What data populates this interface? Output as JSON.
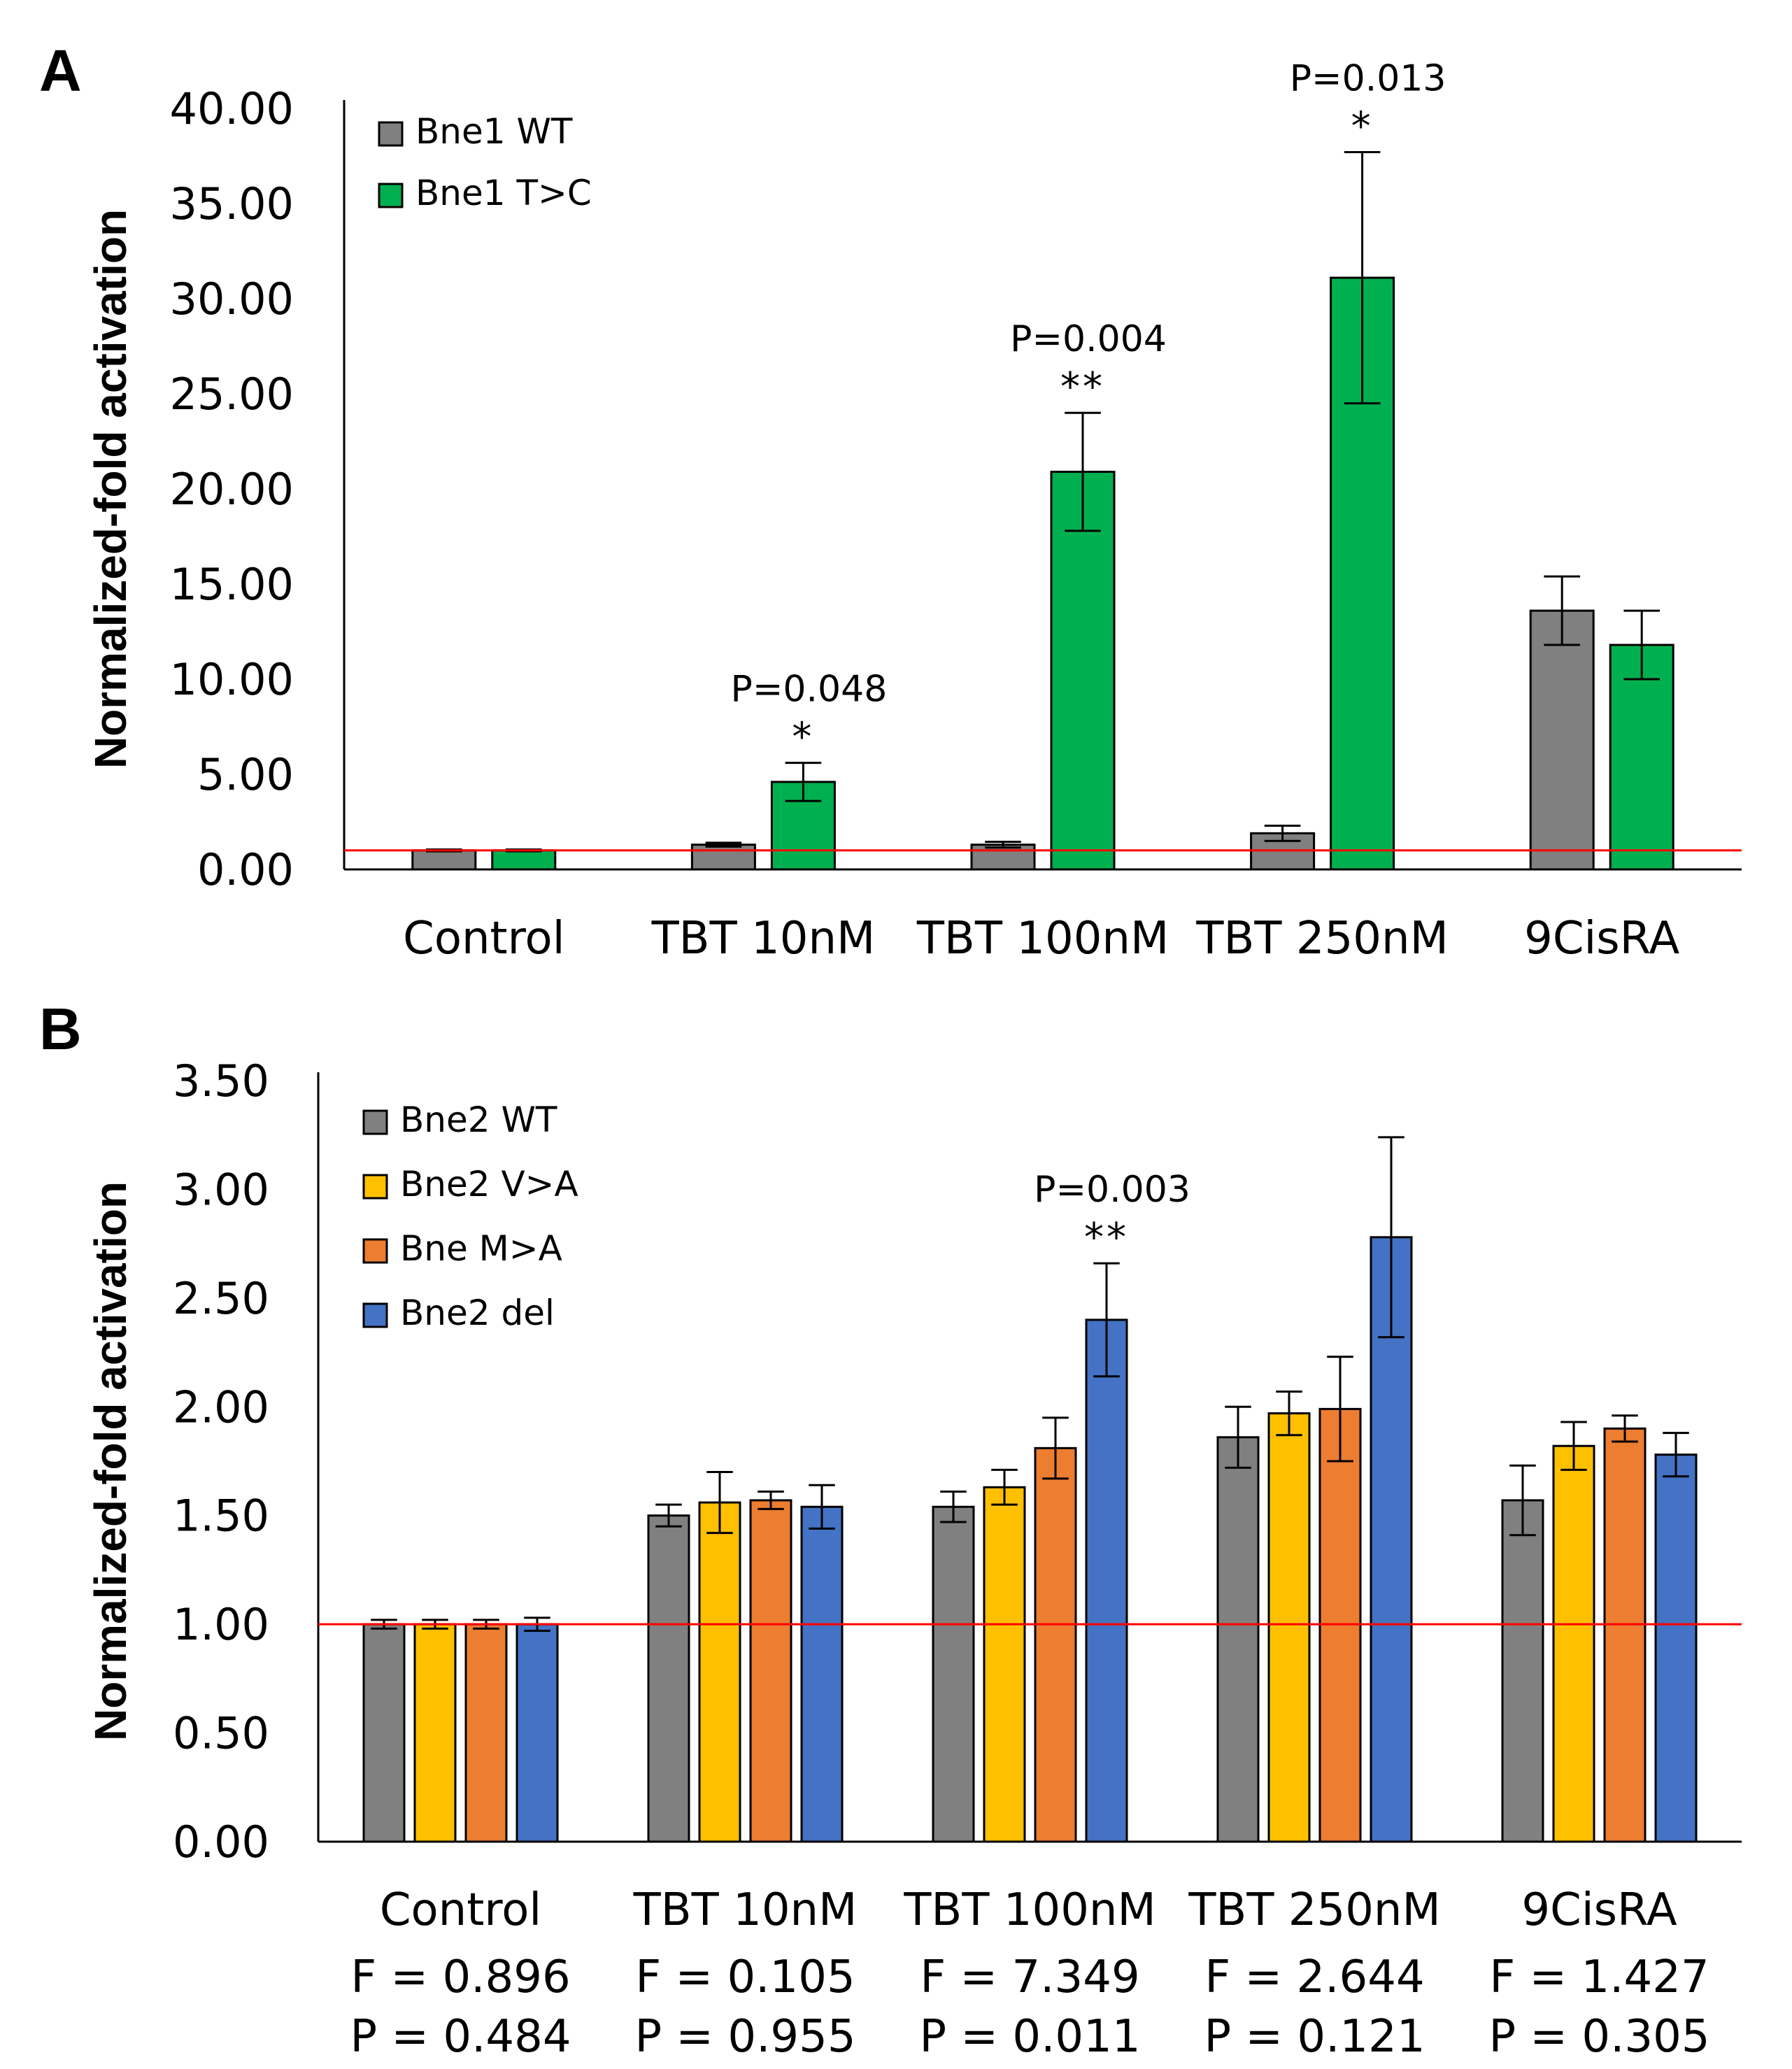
{
  "chart_data": [
    {
      "panel_label": "A",
      "type": "bar",
      "ylabel": "Normalized-fold activation",
      "ylim": [
        0,
        40
      ],
      "yticks": [
        "0.00",
        "5.00",
        "10.00",
        "15.00",
        "20.00",
        "25.00",
        "30.00",
        "35.00",
        "40.00"
      ],
      "categories": [
        "Control",
        "TBT 10nM",
        "TBT 100nM",
        "TBT 250nM",
        "9CisRA"
      ],
      "reference_line": 1.0,
      "reference_color": "#ff0000",
      "legend_position": "top-left",
      "series": [
        {
          "name": "Bne1 WT",
          "color": "#808080",
          "values": [
            1.0,
            1.3,
            1.3,
            1.9,
            13.6
          ],
          "errors": [
            0.05,
            0.1,
            0.15,
            0.4,
            1.8
          ]
        },
        {
          "name": "Bne1 T>C",
          "color": "#00b050",
          "values": [
            1.0,
            4.6,
            20.9,
            31.1,
            11.8
          ],
          "errors": [
            0.05,
            1.0,
            3.1,
            6.6,
            1.8
          ]
        }
      ],
      "annotations": [
        {
          "category": "TBT 10nM",
          "series": 1,
          "p": "P=0.048",
          "stars": "*"
        },
        {
          "category": "TBT 100nM",
          "series": 1,
          "p": "P=0.004",
          "stars": "**"
        },
        {
          "category": "TBT 250nM",
          "series": 1,
          "p": "P=0.013",
          "stars": "*"
        }
      ]
    },
    {
      "panel_label": "B",
      "type": "bar",
      "ylabel": "Normalized-fold activation",
      "ylim": [
        0,
        3.5
      ],
      "yticks": [
        "0.00",
        "0.50",
        "1.00",
        "1.50",
        "2.00",
        "2.50",
        "3.00",
        "3.50"
      ],
      "categories": [
        "Control",
        "TBT 10nM",
        "TBT 100nM",
        "TBT 250nM",
        "9CisRA"
      ],
      "category_stats": [
        {
          "f": "F = 0.896",
          "p": "P = 0.484"
        },
        {
          "f": "F = 0.105",
          "p": "P = 0.955"
        },
        {
          "f": "F = 7.349",
          "p": "P = 0.011"
        },
        {
          "f": "F = 2.644",
          "p": "P = 0.121"
        },
        {
          "f": "F = 1.427",
          "p": "P = 0.305"
        }
      ],
      "reference_line": 1.0,
      "reference_color": "#ff0000",
      "legend_position": "top-left",
      "series": [
        {
          "name": "Bne2 WT",
          "color": "#808080",
          "values": [
            1.0,
            1.5,
            1.54,
            1.86,
            1.57
          ],
          "errors": [
            0.02,
            0.05,
            0.07,
            0.14,
            0.16
          ]
        },
        {
          "name": "Bne2 V>A",
          "color": "#ffc000",
          "values": [
            1.0,
            1.56,
            1.63,
            1.97,
            1.82
          ],
          "errors": [
            0.02,
            0.14,
            0.08,
            0.1,
            0.11
          ]
        },
        {
          "name": "Bne M>A",
          "color": "#ed7d31",
          "values": [
            1.0,
            1.57,
            1.81,
            1.99,
            1.9
          ],
          "errors": [
            0.02,
            0.04,
            0.14,
            0.24,
            0.06
          ]
        },
        {
          "name": "Bne2 del",
          "color": "#4472c4",
          "values": [
            1.0,
            1.54,
            2.4,
            2.78,
            1.78
          ],
          "errors": [
            0.03,
            0.1,
            0.26,
            0.46,
            0.1
          ]
        }
      ],
      "annotations": [
        {
          "category": "TBT 100nM",
          "series": 3,
          "p": "P=0.003",
          "stars": "**"
        }
      ]
    }
  ]
}
